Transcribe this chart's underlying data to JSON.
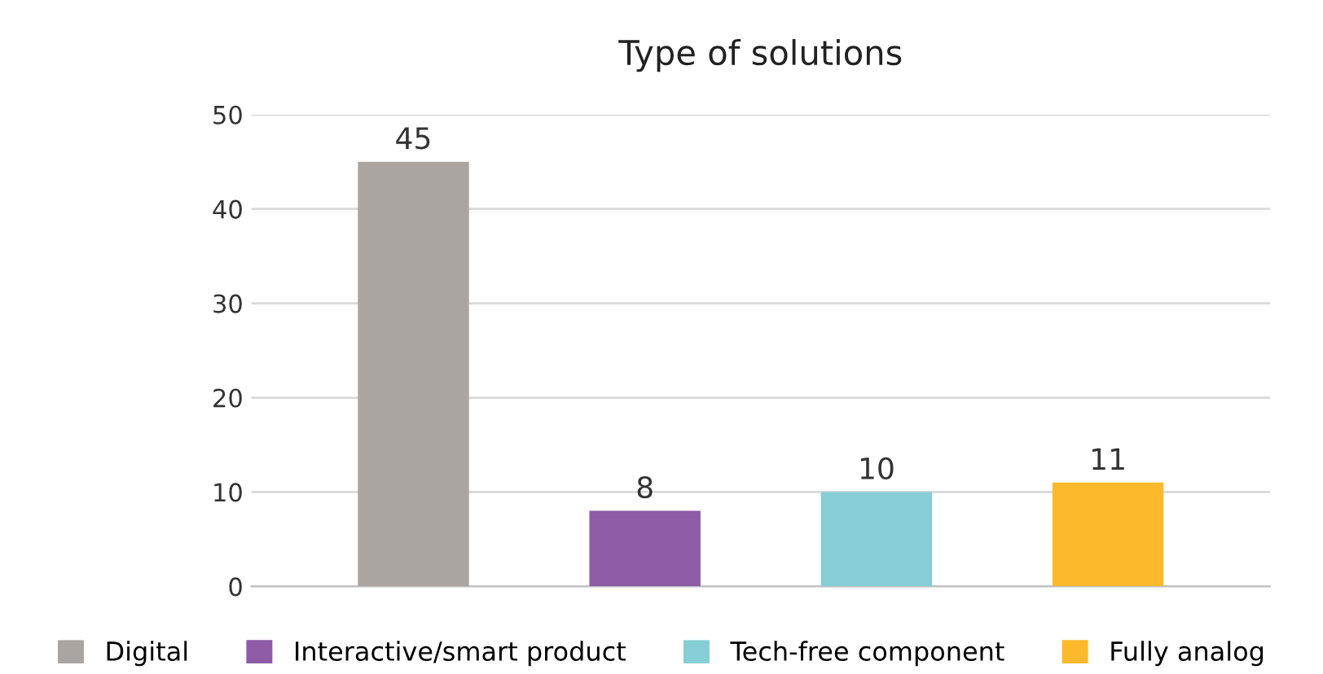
{
  "chart_data": {
    "type": "bar",
    "title": "Type of solutions",
    "categories": [
      null,
      null,
      null,
      null
    ],
    "series": [
      {
        "name": "Digital",
        "color": "#aba5a1",
        "values": [
          45,
          null,
          null,
          null
        ]
      },
      {
        "name": "Interactive/smart product",
        "color": "#8e5ba6",
        "values": [
          null,
          8,
          null,
          null
        ]
      },
      {
        "name": "Tech-free component",
        "color": "#86cdd6",
        "values": [
          null,
          null,
          10,
          null
        ]
      },
      {
        "name": "Fully analog",
        "color": "#fbb92b",
        "values": [
          null,
          null,
          null,
          11
        ]
      }
    ],
    "ylim": [
      0,
      50
    ],
    "yticks": [
      0,
      10,
      20,
      30,
      40,
      50
    ],
    "grid": "y",
    "legend": "bottom",
    "tick_labels": "y",
    "data_labels": true
  }
}
